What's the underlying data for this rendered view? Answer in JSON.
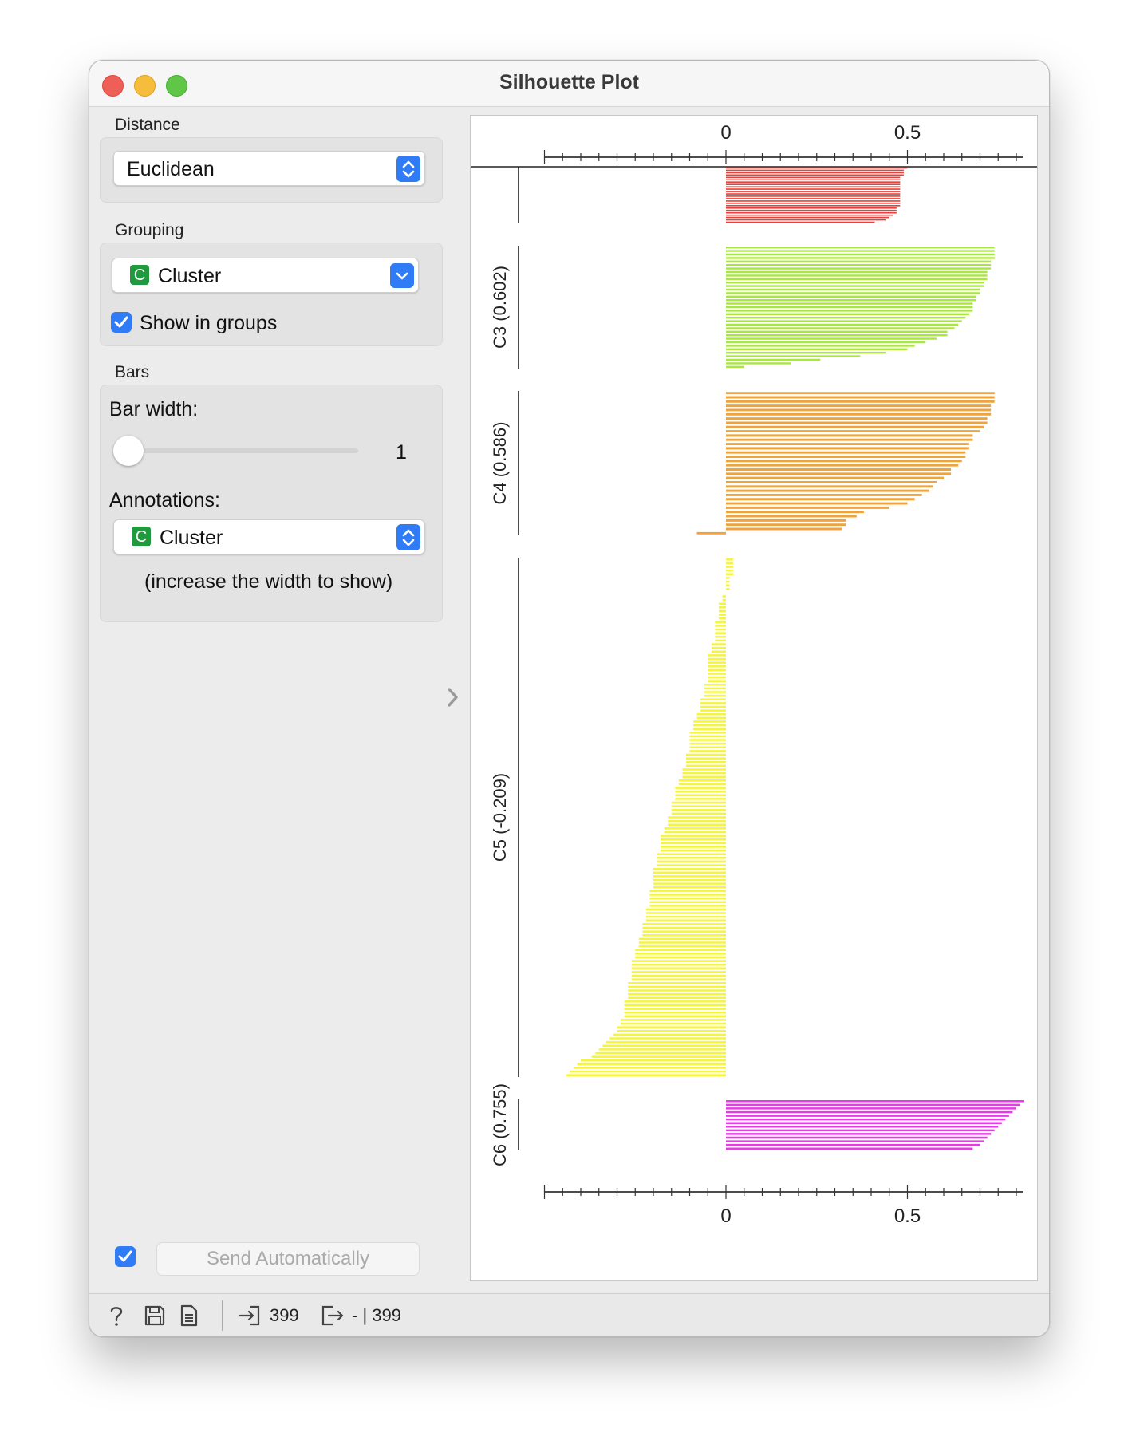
{
  "window": {
    "title": "Silhouette Plot"
  },
  "sidebar": {
    "distance": {
      "label": "Distance",
      "value": "Euclidean"
    },
    "grouping": {
      "label": "Grouping",
      "value": "Cluster",
      "badge": "C",
      "show_in_groups": {
        "label": "Show in groups",
        "checked": true
      }
    },
    "bars": {
      "label": "Bars",
      "bar_width": {
        "label": "Bar width:",
        "value": "1"
      },
      "annotations": {
        "label": "Annotations:",
        "value": "Cluster",
        "badge": "C",
        "hint": "(increase the width to show)"
      }
    },
    "send": {
      "label": "Send Automatically",
      "checked": true
    }
  },
  "status": {
    "input_count": "399",
    "output_text": "- | 399"
  },
  "colors": {
    "C2": "#e8403a",
    "C3": "#a8e83a",
    "C4": "#f0a33a",
    "C5": "#f5f53a",
    "C6": "#e83ae8",
    "accent": "#2f7cf6"
  },
  "chart_data": {
    "type": "bar",
    "orientation": "horizontal",
    "axis_ticks": [
      "0",
      "0.5"
    ],
    "xlim": [
      -0.5,
      0.82
    ],
    "groups": [
      {
        "label": "",
        "color": "#e8403a",
        "values": [
          0.5,
          0.49,
          0.49,
          0.49,
          0.48,
          0.48,
          0.48,
          0.48,
          0.48,
          0.48,
          0.48,
          0.48,
          0.48,
          0.48,
          0.48,
          0.48,
          0.48,
          0.47,
          0.47,
          0.47,
          0.46,
          0.45,
          0.44,
          0.41
        ]
      },
      {
        "label": "C3 (0.602)",
        "color": "#a8e83a",
        "values": [
          0.74,
          0.74,
          0.74,
          0.74,
          0.73,
          0.73,
          0.73,
          0.72,
          0.72,
          0.72,
          0.71,
          0.71,
          0.7,
          0.7,
          0.69,
          0.69,
          0.68,
          0.68,
          0.68,
          0.67,
          0.66,
          0.65,
          0.64,
          0.63,
          0.61,
          0.61,
          0.58,
          0.55,
          0.52,
          0.5,
          0.44,
          0.37,
          0.26,
          0.18,
          0.05
        ]
      },
      {
        "label": "C4 (0.586)",
        "color": "#f0a33a",
        "values": [
          0.74,
          0.74,
          0.74,
          0.73,
          0.73,
          0.73,
          0.72,
          0.72,
          0.71,
          0.7,
          0.68,
          0.68,
          0.67,
          0.67,
          0.66,
          0.66,
          0.65,
          0.64,
          0.62,
          0.62,
          0.6,
          0.58,
          0.57,
          0.56,
          0.54,
          0.52,
          0.5,
          0.45,
          0.38,
          0.36,
          0.33,
          0.33,
          0.32,
          -0.08
        ]
      },
      {
        "label": "C5 (-0.209)",
        "color": "#f5f53a",
        "values": [
          0.02,
          0.02,
          0.02,
          0.02,
          0.02,
          0.01,
          0.01,
          0.01,
          0.01,
          0.0,
          -0.01,
          -0.01,
          -0.02,
          -0.02,
          -0.02,
          -0.02,
          -0.02,
          -0.03,
          -0.03,
          -0.03,
          -0.03,
          -0.03,
          -0.03,
          -0.04,
          -0.04,
          -0.04,
          -0.05,
          -0.05,
          -0.05,
          -0.05,
          -0.05,
          -0.05,
          -0.05,
          -0.05,
          -0.06,
          -0.06,
          -0.06,
          -0.06,
          -0.07,
          -0.07,
          -0.07,
          -0.07,
          -0.08,
          -0.08,
          -0.09,
          -0.09,
          -0.09,
          -0.1,
          -0.1,
          -0.1,
          -0.1,
          -0.1,
          -0.1,
          -0.11,
          -0.11,
          -0.11,
          -0.11,
          -0.12,
          -0.12,
          -0.12,
          -0.13,
          -0.13,
          -0.14,
          -0.14,
          -0.14,
          -0.14,
          -0.15,
          -0.15,
          -0.15,
          -0.15,
          -0.16,
          -0.16,
          -0.16,
          -0.17,
          -0.17,
          -0.18,
          -0.18,
          -0.18,
          -0.18,
          -0.18,
          -0.19,
          -0.19,
          -0.19,
          -0.19,
          -0.2,
          -0.2,
          -0.2,
          -0.2,
          -0.2,
          -0.2,
          -0.21,
          -0.21,
          -0.21,
          -0.21,
          -0.21,
          -0.22,
          -0.22,
          -0.22,
          -0.22,
          -0.23,
          -0.23,
          -0.23,
          -0.23,
          -0.24,
          -0.24,
          -0.24,
          -0.25,
          -0.25,
          -0.25,
          -0.26,
          -0.26,
          -0.26,
          -0.26,
          -0.26,
          -0.26,
          -0.27,
          -0.27,
          -0.27,
          -0.27,
          -0.27,
          -0.28,
          -0.28,
          -0.28,
          -0.28,
          -0.28,
          -0.29,
          -0.29,
          -0.3,
          -0.3,
          -0.31,
          -0.32,
          -0.33,
          -0.34,
          -0.35,
          -0.36,
          -0.37,
          -0.4,
          -0.41,
          -0.42,
          -0.43,
          -0.44
        ]
      },
      {
        "label": "C6 (0.755)",
        "color": "#e83ae8",
        "values": [
          0.82,
          0.81,
          0.8,
          0.79,
          0.78,
          0.77,
          0.76,
          0.75,
          0.74,
          0.73,
          0.72,
          0.71,
          0.7,
          0.68
        ]
      }
    ]
  }
}
